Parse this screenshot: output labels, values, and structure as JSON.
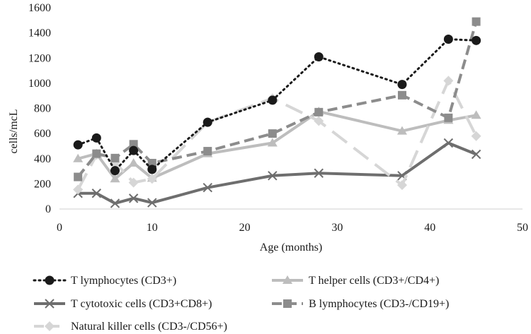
{
  "chart_data": {
    "type": "line",
    "title": "",
    "xlabel": "Age (months)",
    "ylabel": "cells/mcL",
    "xlim": [
      0,
      50
    ],
    "ylim": [
      0,
      1600
    ],
    "xticks": [
      0,
      10,
      20,
      30,
      40,
      50
    ],
    "yticks": [
      0,
      200,
      400,
      600,
      800,
      1000,
      1200,
      1400,
      1600
    ],
    "grid": false,
    "legend_position": "bottom",
    "series": [
      {
        "name": "T lymphocytes (CD3+)",
        "color": "#1a1a1a",
        "style": "dotted",
        "marker": "circle",
        "x": [
          2,
          4,
          6,
          8,
          10,
          16,
          23,
          28,
          37,
          42,
          45
        ],
        "y": [
          510,
          565,
          305,
          465,
          315,
          690,
          865,
          1210,
          990,
          1350,
          1340
        ]
      },
      {
        "name": "T helper cells (CD3+/CD4+)",
        "color": "#bdbdbd",
        "style": "solid",
        "marker": "triangle",
        "x": [
          2,
          4,
          6,
          8,
          10,
          16,
          23,
          28,
          37,
          42,
          45
        ],
        "y": [
          400,
          440,
          240,
          365,
          245,
          440,
          525,
          775,
          620,
          705,
          745
        ]
      },
      {
        "name": "T cytotoxic cells (CD3+CD8+)",
        "color": "#6e6e6e",
        "style": "solid",
        "marker": "x",
        "x": [
          2,
          4,
          6,
          8,
          10,
          16,
          23,
          28,
          37,
          42,
          45
        ],
        "y": [
          125,
          125,
          45,
          85,
          50,
          170,
          265,
          285,
          265,
          525,
          435
        ]
      },
      {
        "name": "B  lymphocytes (CD3-/CD19+)",
        "color": "#8c8c8c",
        "style": "dashed",
        "marker": "square",
        "x": [
          2,
          4,
          6,
          8,
          10,
          16,
          23,
          28,
          37,
          42,
          45
        ],
        "y": [
          255,
          440,
          405,
          515,
          365,
          460,
          600,
          770,
          905,
          725,
          1490
        ]
      },
      {
        "name": "Natural killer cells (CD3-/CD56+)",
        "color": "#d6d6d6",
        "style": "longdash",
        "marker": "diamond",
        "x": [
          2,
          4,
          6,
          8,
          10,
          16,
          23,
          28,
          37,
          42,
          45
        ],
        "y": [
          155,
          430,
          370,
          210,
          240,
          690,
          880,
          700,
          190,
          1020,
          580
        ]
      }
    ]
  }
}
